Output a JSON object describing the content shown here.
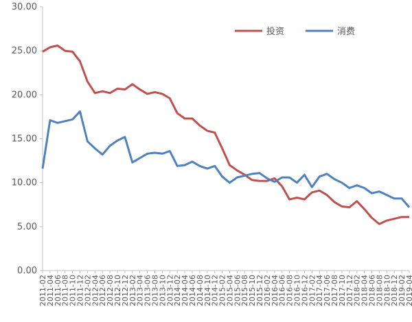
{
  "chart_data": {
    "type": "line",
    "categories": [
      "2011-02",
      "2011-04",
      "2011-06",
      "2011-08",
      "2011-10",
      "2011-12",
      "2012-02",
      "2012-04",
      "2012-06",
      "2012-08",
      "2012-10",
      "2012-12",
      "2013-02",
      "2013-04",
      "2013-06",
      "2013-08",
      "2013-10",
      "2013-12",
      "2014-02",
      "2014-04",
      "2014-06",
      "2014-08",
      "2014-10",
      "2014-12",
      "2015-02",
      "2015-04",
      "2015-06",
      "2015-08",
      "2015-10",
      "2015-12",
      "2016-02",
      "2016-04",
      "2016-06",
      "2016-08",
      "2016-10",
      "2016-12",
      "2017-02",
      "2017-04",
      "2017-06",
      "2017-08",
      "2017-10",
      "2017-12",
      "2018-02",
      "2018-04",
      "2018-06",
      "2018-08",
      "2018-10",
      "2018-12",
      "2019-02",
      "2019-04"
    ],
    "series": [
      {
        "name": "投资",
        "color": "#c0504d",
        "values": [
          24.9,
          25.4,
          25.6,
          25.0,
          24.9,
          23.8,
          21.5,
          20.2,
          20.4,
          20.2,
          20.7,
          20.6,
          21.2,
          20.6,
          20.1,
          20.3,
          20.1,
          19.6,
          17.9,
          17.3,
          17.3,
          16.5,
          15.9,
          15.7,
          13.9,
          12.0,
          11.4,
          10.9,
          10.3,
          10.2,
          10.2,
          10.5,
          9.6,
          8.1,
          8.3,
          8.1,
          8.9,
          9.1,
          8.6,
          7.8,
          7.3,
          7.2,
          7.9,
          7.0,
          6.0,
          5.3,
          5.7,
          5.9,
          6.1,
          6.1
        ]
      },
      {
        "name": "消费",
        "color": "#4f81bd",
        "values": [
          11.6,
          17.1,
          16.8,
          17.0,
          17.2,
          18.1,
          14.7,
          13.9,
          13.2,
          14.2,
          14.8,
          15.2,
          12.3,
          12.8,
          13.3,
          13.4,
          13.3,
          13.6,
          11.9,
          12.0,
          12.4,
          11.9,
          11.6,
          11.9,
          10.7,
          10.0,
          10.6,
          10.8,
          11.0,
          11.1,
          10.5,
          10.1,
          10.6,
          10.6,
          10.0,
          10.9,
          9.5,
          10.7,
          11.0,
          10.4,
          10.0,
          9.4,
          9.7,
          9.4,
          8.8,
          9.0,
          8.6,
          8.2,
          8.2,
          7.2
        ]
      }
    ],
    "ylim": [
      0,
      30
    ],
    "yticks": [
      {
        "value": 0,
        "label": "0.00"
      },
      {
        "value": 5,
        "label": "5.00"
      },
      {
        "value": 10,
        "label": "10.00"
      },
      {
        "value": 15,
        "label": "15.00"
      },
      {
        "value": 20,
        "label": "20.00"
      },
      {
        "value": 25,
        "label": "25.00"
      },
      {
        "value": 30,
        "label": "30.00"
      }
    ],
    "grid": false
  }
}
